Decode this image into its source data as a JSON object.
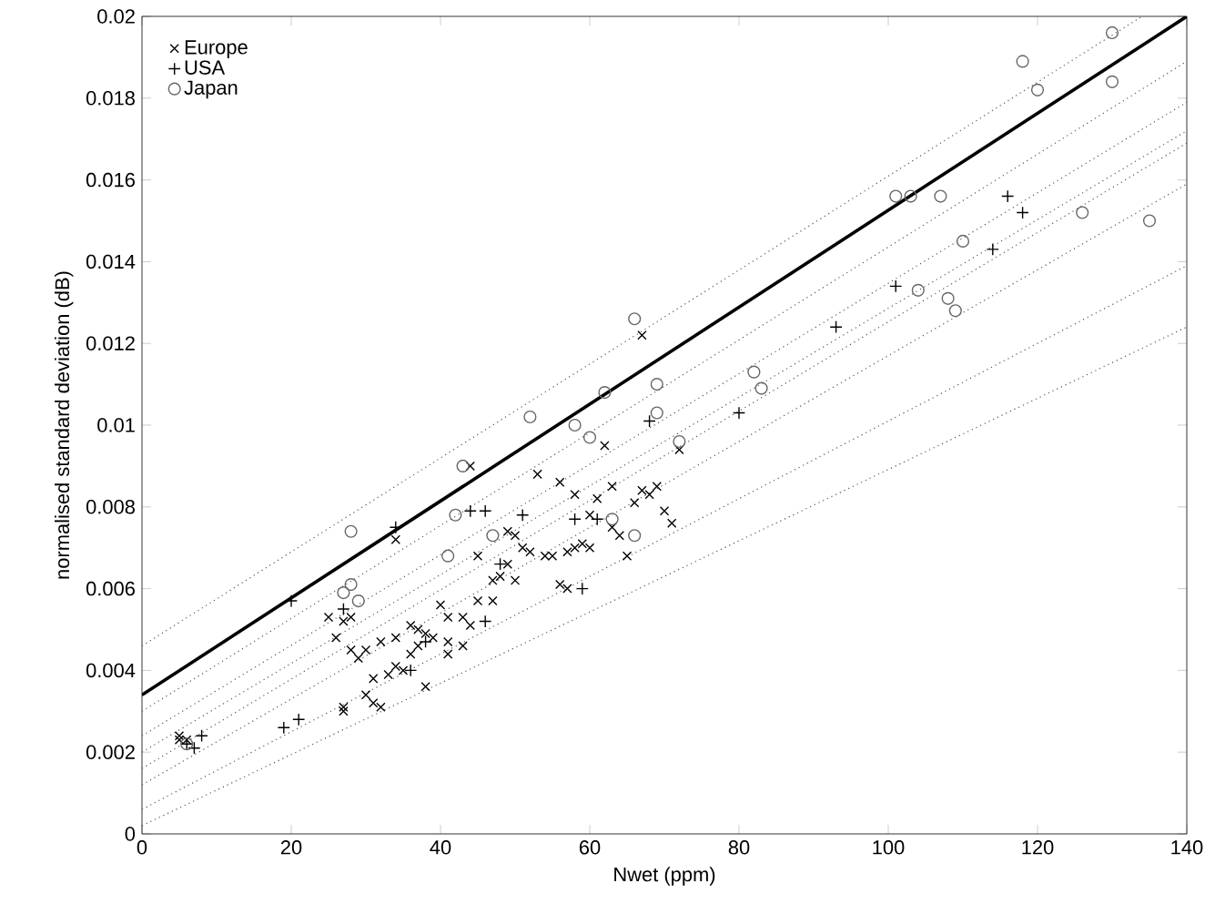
{
  "chart_data": {
    "type": "scatter",
    "xlabel": "Nwet (ppm)",
    "ylabel": "normalised standard deviation (dB)",
    "xlim": [
      0,
      140
    ],
    "ylim": [
      0,
      0.02
    ],
    "xticks": [
      0,
      20,
      40,
      60,
      80,
      100,
      120,
      140
    ],
    "yticks": [
      0,
      0.002,
      0.004,
      0.006,
      0.008,
      0.01,
      0.012,
      0.014,
      0.016,
      0.018,
      0.02
    ],
    "grid": false,
    "legend": "top left",
    "series": [
      {
        "name": "Europe",
        "marker": "cross",
        "color": "#000000",
        "x": [
          5,
          5,
          6,
          27,
          27,
          30,
          31,
          32,
          31,
          33,
          34,
          36,
          37,
          38,
          35,
          29,
          30,
          28,
          26,
          25,
          27,
          28,
          32,
          34,
          36,
          37,
          38,
          39,
          41,
          41,
          41,
          43,
          44,
          45,
          47,
          48,
          49,
          50,
          47,
          49,
          50,
          51,
          52,
          54,
          55,
          56,
          57,
          57,
          58,
          59,
          60,
          60,
          61,
          62,
          63,
          63,
          64,
          65,
          66,
          67,
          68,
          69,
          70,
          71,
          72,
          67,
          44,
          34,
          53,
          56,
          58,
          45,
          40,
          43
        ],
        "values": [
          0.0024,
          0.0023,
          0.0023,
          0.003,
          0.0031,
          0.0034,
          0.0032,
          0.0031,
          0.0038,
          0.0039,
          0.0041,
          0.0044,
          0.0046,
          0.0036,
          0.004,
          0.0043,
          0.0045,
          0.0045,
          0.0048,
          0.0053,
          0.0052,
          0.0053,
          0.0047,
          0.0048,
          0.0051,
          0.005,
          0.0049,
          0.0048,
          0.0044,
          0.0047,
          0.0053,
          0.0053,
          0.0051,
          0.0057,
          0.0062,
          0.0063,
          0.0066,
          0.0062,
          0.0057,
          0.0074,
          0.0073,
          0.007,
          0.0069,
          0.0068,
          0.0068,
          0.0061,
          0.006,
          0.0069,
          0.007,
          0.0071,
          0.007,
          0.0078,
          0.0082,
          0.0095,
          0.0085,
          0.0075,
          0.0073,
          0.0068,
          0.0081,
          0.0084,
          0.0083,
          0.0085,
          0.0079,
          0.0076,
          0.0094,
          0.0122,
          0.009,
          0.0072,
          0.0088,
          0.0086,
          0.0083,
          0.0068,
          0.0056,
          0.0046
        ]
      },
      {
        "name": "USA",
        "marker": "plus",
        "color": "#000000",
        "x": [
          6,
          7,
          8,
          19,
          21,
          20,
          34,
          44,
          46,
          58,
          51,
          68,
          80,
          93,
          101,
          114,
          116,
          118,
          38,
          46,
          48,
          59,
          61,
          36,
          27
        ],
        "values": [
          0.0022,
          0.0021,
          0.0024,
          0.0026,
          0.0028,
          0.0057,
          0.0075,
          0.0079,
          0.0079,
          0.0077,
          0.0078,
          0.0101,
          0.0103,
          0.0124,
          0.0134,
          0.0143,
          0.0156,
          0.0152,
          0.0047,
          0.0052,
          0.0066,
          0.006,
          0.0077,
          0.004,
          0.0055
        ]
      },
      {
        "name": "Japan",
        "marker": "circle",
        "color": "#666666",
        "x": [
          28,
          27,
          28,
          29,
          43,
          41,
          52,
          58,
          62,
          66,
          69,
          69,
          72,
          60,
          82,
          83,
          101,
          103,
          107,
          110,
          108,
          109,
          118,
          120,
          126,
          130,
          130,
          135,
          104,
          6,
          42,
          47,
          63,
          66
        ],
        "values": [
          0.0074,
          0.0059,
          0.0061,
          0.0057,
          0.009,
          0.0068,
          0.0102,
          0.01,
          0.0108,
          0.0126,
          0.011,
          0.0103,
          0.0096,
          0.0097,
          0.0113,
          0.0109,
          0.0156,
          0.0156,
          0.0156,
          0.0145,
          0.0131,
          0.0128,
          0.0189,
          0.0182,
          0.0152,
          0.0196,
          0.0184,
          0.015,
          0.0133,
          0.0022,
          0.0078,
          0.0073,
          0.0077,
          0.0073
        ]
      },
      {
        "type": "line",
        "line_style": "solid",
        "color": "#000000",
        "x": [
          0,
          140
        ],
        "values": [
          0.0034,
          0.02
        ]
      },
      {
        "type": "line",
        "line_style": "dotted",
        "color": "#555555",
        "x": [
          0,
          134
        ],
        "values": [
          0.0046,
          0.02
        ]
      },
      {
        "type": "line",
        "line_style": "dotted",
        "color": "#555555",
        "x": [
          0,
          140
        ],
        "values": [
          0.003,
          0.0189
        ]
      },
      {
        "type": "line",
        "line_style": "dotted",
        "color": "#555555",
        "x": [
          0,
          140
        ],
        "values": [
          0.0024,
          0.0179
        ]
      },
      {
        "type": "line",
        "line_style": "dotted",
        "color": "#555555",
        "x": [
          0,
          140
        ],
        "values": [
          0.002,
          0.0172
        ]
      },
      {
        "type": "line",
        "line_style": "dotted",
        "color": "#555555",
        "x": [
          0,
          140
        ],
        "values": [
          0.0016,
          0.0169
        ]
      },
      {
        "type": "line",
        "line_style": "dotted",
        "color": "#555555",
        "x": [
          0,
          140
        ],
        "values": [
          0.0012,
          0.0159
        ]
      },
      {
        "type": "line",
        "line_style": "dotted",
        "color": "#555555",
        "x": [
          0,
          140
        ],
        "values": [
          0.0006,
          0.0139
        ]
      },
      {
        "type": "line",
        "line_style": "dotted",
        "color": "#555555",
        "x": [
          0,
          140
        ],
        "values": [
          0.0002,
          0.0124
        ]
      }
    ]
  }
}
